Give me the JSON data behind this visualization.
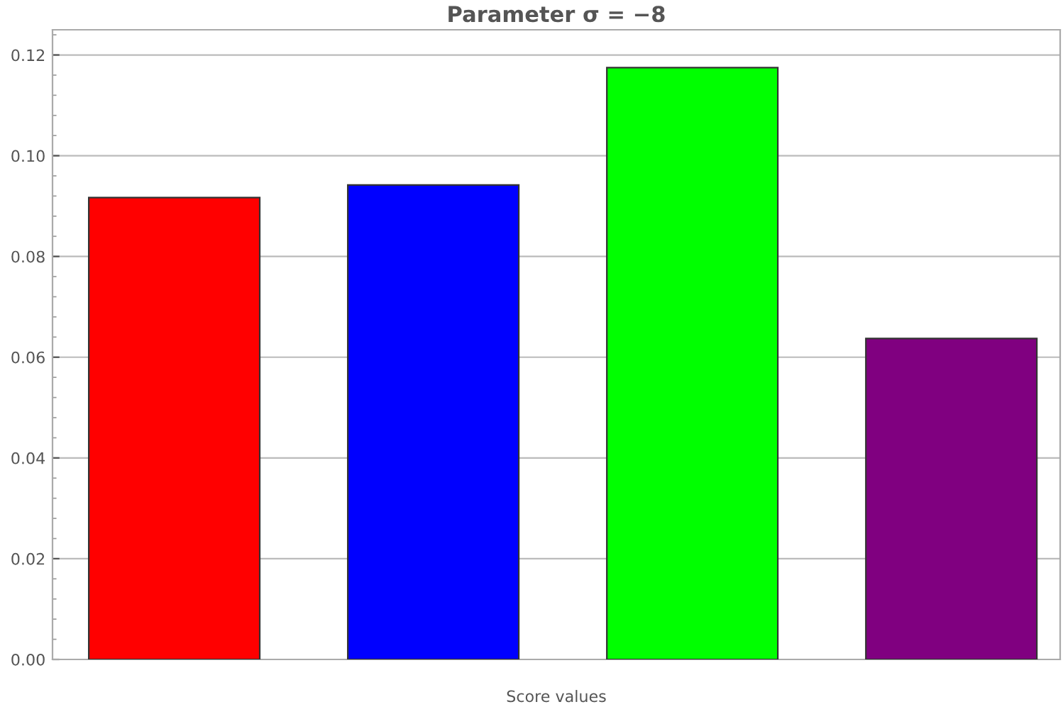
{
  "chart_data": {
    "type": "bar",
    "title": "Parameter σ = −8",
    "xlabel": "Score values",
    "categories": [
      null,
      null,
      null,
      null
    ],
    "values": [
      0.0917,
      0.0942,
      0.1175,
      0.0637
    ],
    "colors": [
      "#ff0000",
      "#0000ff",
      "#00ff00",
      "#800080"
    ],
    "ylim": [
      0,
      0.125
    ],
    "yticks": [
      {
        "value": 0,
        "label": "0.00"
      },
      {
        "value": 0.02,
        "label": "0.02"
      },
      {
        "value": 0.04,
        "label": "0.04"
      },
      {
        "value": 0.06,
        "label": "0.06"
      },
      {
        "value": 0.08,
        "label": "0.08"
      },
      {
        "value": 0.1,
        "label": "0.10"
      },
      {
        "value": 0.12,
        "label": "0.12"
      }
    ],
    "grid": "y"
  }
}
